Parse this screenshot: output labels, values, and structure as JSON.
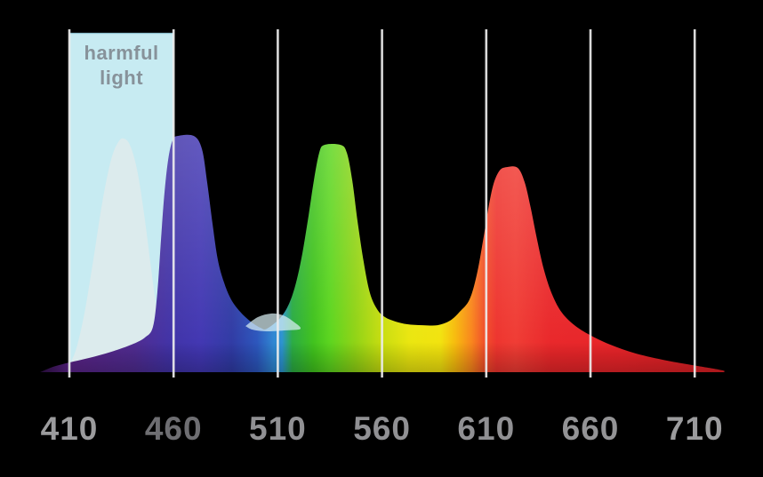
{
  "page": {
    "background": "#000000"
  },
  "chart_data": {
    "type": "area",
    "title": "",
    "xlabel": "",
    "ylabel": "",
    "legend": "none",
    "grid": "vertical-only",
    "x_axis": {
      "range_nm": [
        396,
        724
      ],
      "gridline_color": "#ededed",
      "ticks": [
        {
          "nm": 410,
          "label": "410",
          "color": "#9b9b9d"
        },
        {
          "nm": 460,
          "label": "460",
          "color": "#6e6e72"
        },
        {
          "nm": 510,
          "label": "510",
          "color": "#909093"
        },
        {
          "nm": 560,
          "label": "560",
          "color": "#909093"
        },
        {
          "nm": 610,
          "label": "610",
          "color": "#909093"
        },
        {
          "nm": 660,
          "label": "660",
          "color": "#939395"
        },
        {
          "nm": 710,
          "label": "710",
          "color": "#9b9b9d"
        }
      ]
    },
    "y_axis": {
      "visible": false,
      "range": [
        0,
        1
      ]
    },
    "harmful_region": {
      "label": "harmful light",
      "from_nm": 410,
      "to_nm": 460,
      "fill": "#cdf3fa",
      "opacity": 0.97,
      "top_border_color": "#8ec3d2",
      "label_color": "#87929a"
    },
    "peaks_summary": [
      {
        "name": "violet-phosphor",
        "nm": 436,
        "intensity": 0.99
      },
      {
        "name": "blue",
        "nm": 466,
        "intensity": 1.0
      },
      {
        "name": "green",
        "nm": 536,
        "intensity": 0.96
      },
      {
        "name": "red",
        "nm": 620,
        "intensity": 0.87
      }
    ],
    "series": [
      {
        "name": "violet-phosphor-peak",
        "fill": "#dfeaec",
        "opacity": 0.88,
        "closed_to_baseline": true,
        "points": [
          [
            410,
            0.0
          ],
          [
            410,
            0.026
          ],
          [
            413.4,
            0.102
          ],
          [
            417.3,
            0.252
          ],
          [
            421.5,
            0.477
          ],
          [
            425.8,
            0.718
          ],
          [
            430.0,
            0.899
          ],
          [
            433.5,
            0.974
          ],
          [
            436.0,
            0.989
          ],
          [
            439.0,
            0.962
          ],
          [
            442.4,
            0.861
          ],
          [
            445.8,
            0.673
          ],
          [
            449.2,
            0.44
          ],
          [
            452.2,
            0.241
          ],
          [
            454.8,
            0.102
          ],
          [
            457.0,
            0.034
          ],
          [
            458.6,
            0.0
          ]
        ]
      },
      {
        "name": "main-spectrum",
        "fill": "wavelength-gradient",
        "opacity": 1.0,
        "closed_to_baseline": true,
        "points": [
          [
            396,
            0.0
          ],
          [
            402.3,
            0.023
          ],
          [
            410,
            0.041
          ],
          [
            419.4,
            0.06
          ],
          [
            430,
            0.086
          ],
          [
            439.9,
            0.117
          ],
          [
            446.3,
            0.147
          ],
          [
            450.1,
            0.192
          ],
          [
            452.2,
            0.335
          ],
          [
            453.9,
            0.553
          ],
          [
            455.6,
            0.756
          ],
          [
            457.4,
            0.899
          ],
          [
            459.5,
            0.981
          ],
          [
            462.1,
            1.0
          ],
          [
            469.7,
            1.0
          ],
          [
            473.6,
            0.944
          ],
          [
            476.1,
            0.805
          ],
          [
            478.7,
            0.628
          ],
          [
            481.2,
            0.477
          ],
          [
            484.2,
            0.38
          ],
          [
            487.6,
            0.308
          ],
          [
            491.9,
            0.256
          ],
          [
            497.0,
            0.214
          ],
          [
            501.7,
            0.188
          ],
          [
            504.7,
            0.184
          ],
          [
            511.1,
            0.229
          ],
          [
            515.4,
            0.29
          ],
          [
            518.8,
            0.38
          ],
          [
            521.8,
            0.504
          ],
          [
            524.8,
            0.665
          ],
          [
            527.3,
            0.812
          ],
          [
            529.9,
            0.929
          ],
          [
            532.4,
            0.962
          ],
          [
            540.1,
            0.962
          ],
          [
            543.1,
            0.929
          ],
          [
            545.7,
            0.812
          ],
          [
            548.2,
            0.643
          ],
          [
            551.2,
            0.466
          ],
          [
            554.2,
            0.335
          ],
          [
            557.6,
            0.267
          ],
          [
            561.4,
            0.233
          ],
          [
            566.6,
            0.214
          ],
          [
            572.1,
            0.203
          ],
          [
            579.4,
            0.199
          ],
          [
            586.6,
            0.199
          ],
          [
            592.6,
            0.218
          ],
          [
            597.3,
            0.256
          ],
          [
            602.0,
            0.308
          ],
          [
            605.4,
            0.41
          ],
          [
            608.4,
            0.553
          ],
          [
            611.0,
            0.692
          ],
          [
            613.5,
            0.797
          ],
          [
            616.5,
            0.854
          ],
          [
            619.9,
            0.868
          ],
          [
            625.0,
            0.865
          ],
          [
            628.4,
            0.805
          ],
          [
            631.4,
            0.692
          ],
          [
            634.4,
            0.56
          ],
          [
            637.8,
            0.429
          ],
          [
            641.7,
            0.327
          ],
          [
            646.3,
            0.252
          ],
          [
            652.3,
            0.199
          ],
          [
            659.6,
            0.158
          ],
          [
            669.4,
            0.117
          ],
          [
            681.8,
            0.079
          ],
          [
            696.7,
            0.049
          ],
          [
            711.6,
            0.026
          ],
          [
            723.2,
            0.008
          ],
          [
            724.0,
            0.0
          ]
        ]
      },
      {
        "name": "cyan-highlight",
        "fill": "#d8eef3",
        "opacity": 0.72,
        "closed_to_baseline": false,
        "points": [
          [
            494.5,
            0.195
          ],
          [
            500.4,
            0.233
          ],
          [
            506.8,
            0.248
          ],
          [
            512.4,
            0.241
          ],
          [
            517.5,
            0.214
          ],
          [
            520.9,
            0.184
          ],
          [
            514.1,
            0.177
          ],
          [
            504.7,
            0.173
          ],
          [
            497.9,
            0.18
          ],
          [
            494.5,
            0.195
          ]
        ]
      }
    ],
    "gradient_stops": [
      {
        "nm": 396,
        "color": "#2f0f45"
      },
      {
        "nm": 410,
        "color": "#5a2387"
      },
      {
        "nm": 441,
        "color": "#4f2b90"
      },
      {
        "nm": 460,
        "color": "#3f32a8"
      },
      {
        "nm": 473,
        "color": "#4136b2"
      },
      {
        "nm": 488,
        "color": "#2f3aa4"
      },
      {
        "nm": 500,
        "color": "#2b55bc"
      },
      {
        "nm": 508,
        "color": "#2e86d2"
      },
      {
        "nm": 512,
        "color": "#2b93d0"
      },
      {
        "nm": 517,
        "color": "#2aab42"
      },
      {
        "nm": 527,
        "color": "#3fc21c"
      },
      {
        "nm": 535,
        "color": "#5bd51d"
      },
      {
        "nm": 547,
        "color": "#8fd314"
      },
      {
        "nm": 560,
        "color": "#c8dd0e"
      },
      {
        "nm": 573,
        "color": "#eae60e"
      },
      {
        "nm": 588,
        "color": "#f2e30d"
      },
      {
        "nm": 595,
        "color": "#f7bb0c"
      },
      {
        "nm": 603,
        "color": "#f9851b"
      },
      {
        "nm": 609,
        "color": "#f14f28"
      },
      {
        "nm": 615,
        "color": "#ee332d"
      },
      {
        "nm": 624,
        "color": "#f03b33"
      },
      {
        "nm": 641,
        "color": "#e92629"
      },
      {
        "nm": 675,
        "color": "#e72328"
      },
      {
        "nm": 723,
        "color": "#da1f24"
      }
    ]
  }
}
